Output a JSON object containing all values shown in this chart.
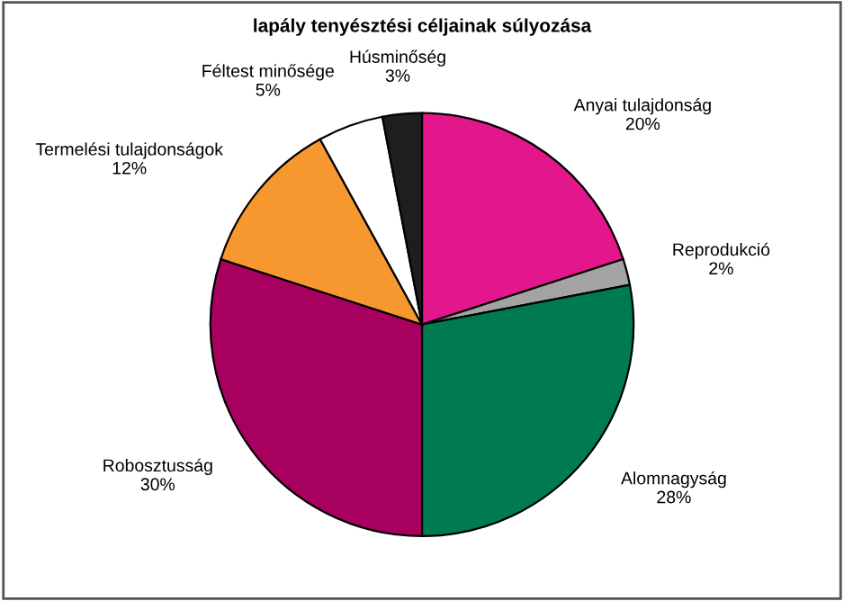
{
  "chart_data": {
    "type": "pie",
    "title": "lapály tenyésztési céljainak súlyozása",
    "categories": [
      "Anyai tulajdonság",
      "Reprodukció",
      "Alomnagyság",
      "Robosztusság",
      "Termelési tulajdonságok",
      "Féltest minősége",
      "Húsminőség"
    ],
    "values": [
      20,
      2,
      28,
      30,
      12,
      5,
      3
    ],
    "value_labels": [
      "20%",
      "2%",
      "28%",
      "30%",
      "12%",
      "5%",
      "3%"
    ],
    "colors": [
      "#e3178b",
      "#a3a3a3",
      "#007a50",
      "#a8005f",
      "#f6982f",
      "#ffffff",
      "#1e1e1e"
    ]
  }
}
